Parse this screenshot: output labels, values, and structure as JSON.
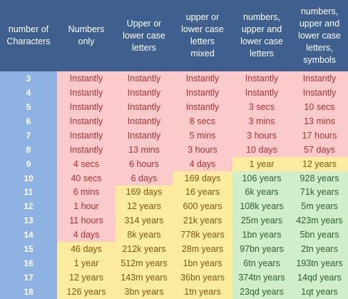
{
  "headers": [
    "number of\nCharacters",
    "Numbers\nonly",
    "Upper or\nlower case\nletters",
    "upper or\nlower case\nletters\nmixed",
    "numbers,\nupper and\nlower case\nletters",
    "numbers,\nupper and\nlower case\nletters,\nsymbols"
  ],
  "colors": {
    "header_bg": "#3f5f8f",
    "row_number_bg": "#8eb3e3",
    "instant_bg": "#fbcaca",
    "weak_bg": "#fbcaca",
    "medium_bg": "#fdeba0",
    "strong_bg": "#cfeec9"
  },
  "rows": [
    {
      "n": "3",
      "cells": [
        [
          "Instantly",
          "instant"
        ],
        [
          "Instantly",
          "instant"
        ],
        [
          "Instantly",
          "instant"
        ],
        [
          "Instantly",
          "instant"
        ],
        [
          "Instantly",
          "instant"
        ]
      ]
    },
    {
      "n": "4",
      "cells": [
        [
          "Instantly",
          "instant"
        ],
        [
          "Instantly",
          "instant"
        ],
        [
          "Instantly",
          "instant"
        ],
        [
          "Instantly",
          "instant"
        ],
        [
          "Instantly",
          "instant"
        ]
      ]
    },
    {
      "n": "5",
      "cells": [
        [
          "Instantly",
          "instant"
        ],
        [
          "Instantly",
          "instant"
        ],
        [
          "Instantly",
          "instant"
        ],
        [
          "3 secs",
          "weak"
        ],
        [
          "10 secs",
          "weak"
        ]
      ]
    },
    {
      "n": "6",
      "cells": [
        [
          "Instantly",
          "instant"
        ],
        [
          "Instantly",
          "instant"
        ],
        [
          "8 secs",
          "weak"
        ],
        [
          "3 mins",
          "weak"
        ],
        [
          "13 mins",
          "weak"
        ]
      ]
    },
    {
      "n": "7",
      "cells": [
        [
          "Instantly",
          "instant"
        ],
        [
          "Instantly",
          "instant"
        ],
        [
          "5 mins",
          "weak"
        ],
        [
          "3 hours",
          "weak"
        ],
        [
          "17 hours",
          "weak"
        ]
      ]
    },
    {
      "n": "8",
      "cells": [
        [
          "Instantly",
          "instant"
        ],
        [
          "13 mins",
          "weak"
        ],
        [
          "3 hours",
          "weak"
        ],
        [
          "10 days",
          "weak"
        ],
        [
          "57 days",
          "weak"
        ]
      ]
    },
    {
      "n": "9",
      "cells": [
        [
          "4 secs",
          "weak"
        ],
        [
          "6 hours",
          "weak"
        ],
        [
          "4 days",
          "weak"
        ],
        [
          "1 year",
          "medium"
        ],
        [
          "12 years",
          "medium"
        ]
      ]
    },
    {
      "n": "10",
      "cells": [
        [
          "40 secs",
          "weak"
        ],
        [
          "6 days",
          "weak"
        ],
        [
          "169 days",
          "medium"
        ],
        [
          "106 years",
          "strong"
        ],
        [
          "928 years",
          "strong"
        ]
      ]
    },
    {
      "n": "11",
      "cells": [
        [
          "6 mins",
          "weak"
        ],
        [
          "169 days",
          "medium"
        ],
        [
          "16 years",
          "medium"
        ],
        [
          "6k years",
          "strong"
        ],
        [
          "71k years",
          "strong"
        ]
      ]
    },
    {
      "n": "12",
      "cells": [
        [
          "1 hour",
          "weak"
        ],
        [
          "12 years",
          "medium"
        ],
        [
          "600 years",
          "medium"
        ],
        [
          "108k years",
          "strong"
        ],
        [
          "5m years",
          "strong"
        ]
      ]
    },
    {
      "n": "13",
      "cells": [
        [
          "11 hours",
          "weak"
        ],
        [
          "314 years",
          "medium"
        ],
        [
          "21k years",
          "medium"
        ],
        [
          "25m years",
          "strong"
        ],
        [
          "423m years",
          "strong"
        ]
      ]
    },
    {
      "n": "14",
      "cells": [
        [
          "4 days",
          "weak"
        ],
        [
          "8k years",
          "medium"
        ],
        [
          "778k years",
          "medium"
        ],
        [
          "1bn years",
          "strong"
        ],
        [
          "5bn years",
          "strong"
        ]
      ]
    },
    {
      "n": "15",
      "cells": [
        [
          "46 days",
          "medium"
        ],
        [
          "212k years",
          "medium"
        ],
        [
          "28m years",
          "medium"
        ],
        [
          "97bn years",
          "strong"
        ],
        [
          "2tn years",
          "strong"
        ]
      ]
    },
    {
      "n": "16",
      "cells": [
        [
          "1 year",
          "medium"
        ],
        [
          "512m years",
          "medium"
        ],
        [
          "1bn years",
          "medium"
        ],
        [
          "6tn years",
          "strong"
        ],
        [
          "193tn years",
          "strong"
        ]
      ]
    },
    {
      "n": "17",
      "cells": [
        [
          "12 years",
          "medium"
        ],
        [
          "143m years",
          "medium"
        ],
        [
          "36bn years",
          "medium"
        ],
        [
          "374tn years",
          "strong"
        ],
        [
          "14qd years",
          "strong"
        ]
      ]
    },
    {
      "n": "18",
      "cells": [
        [
          "126 years",
          "medium"
        ],
        [
          "3bn years",
          "medium"
        ],
        [
          "1tn years",
          "medium"
        ],
        [
          "23qd years",
          "strong"
        ],
        [
          "1qt years",
          "strong"
        ]
      ]
    }
  ]
}
